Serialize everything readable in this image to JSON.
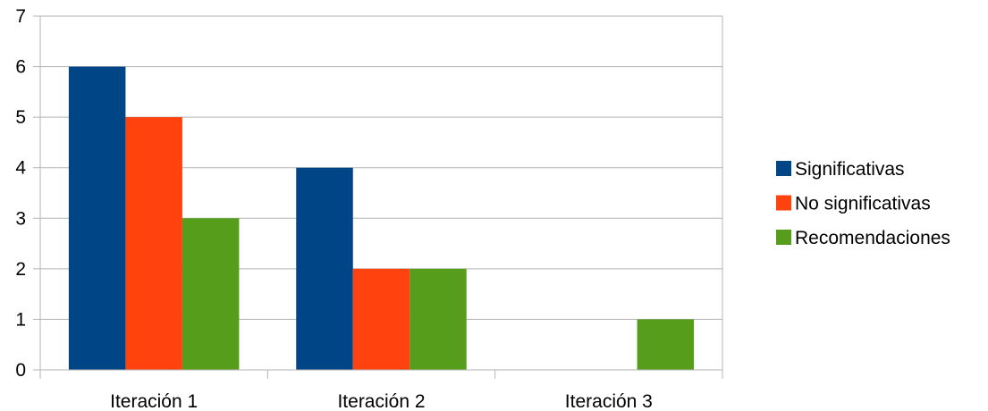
{
  "chart_data": {
    "type": "bar",
    "categories": [
      "Iteración 1",
      "Iteración 2",
      "Iteración 3"
    ],
    "series": [
      {
        "name": "Significativas",
        "values": [
          6,
          4,
          0
        ],
        "color": "#004586"
      },
      {
        "name": "No significativas",
        "values": [
          5,
          2,
          0
        ],
        "color": "#ff420e"
      },
      {
        "name": "Recomendaciones",
        "values": [
          3,
          2,
          1
        ],
        "color": "#579d1c"
      }
    ],
    "yticks": [
      "0",
      "1",
      "2",
      "3",
      "4",
      "5",
      "6",
      "7"
    ],
    "ylim": [
      0,
      7
    ],
    "grid": true,
    "legend": "right"
  }
}
